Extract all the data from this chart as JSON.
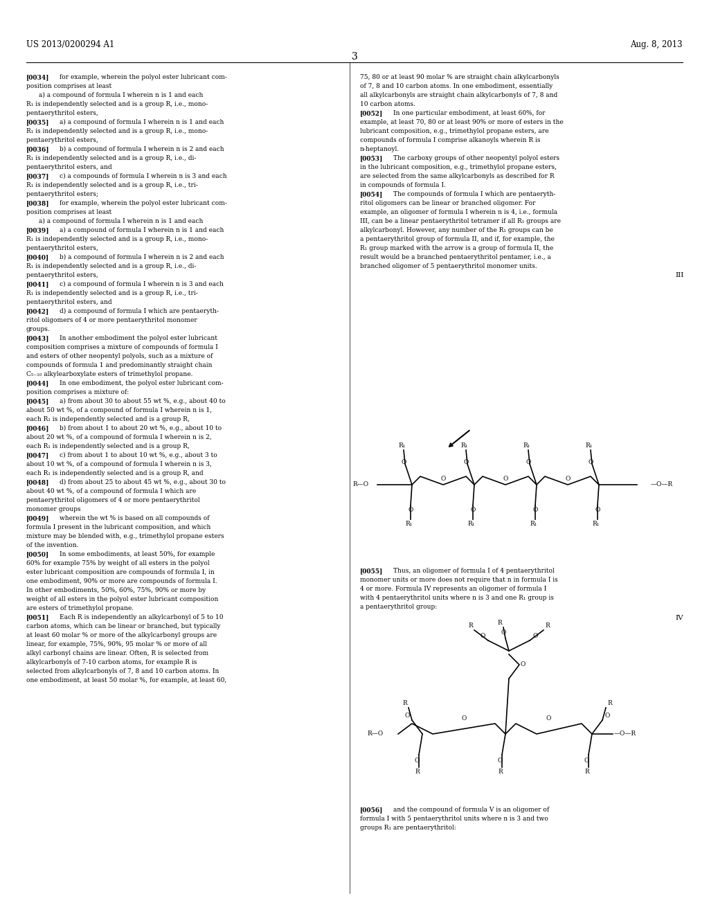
{
  "bg_color": "#ffffff",
  "header_left": "US 2013/0200294 A1",
  "header_right": "Aug. 8, 2013",
  "page_number": "3",
  "text_fontsize": 6.5,
  "header_fontsize": 8.5,
  "page_num_fontsize": 10,
  "chem_fontsize": 7.0
}
